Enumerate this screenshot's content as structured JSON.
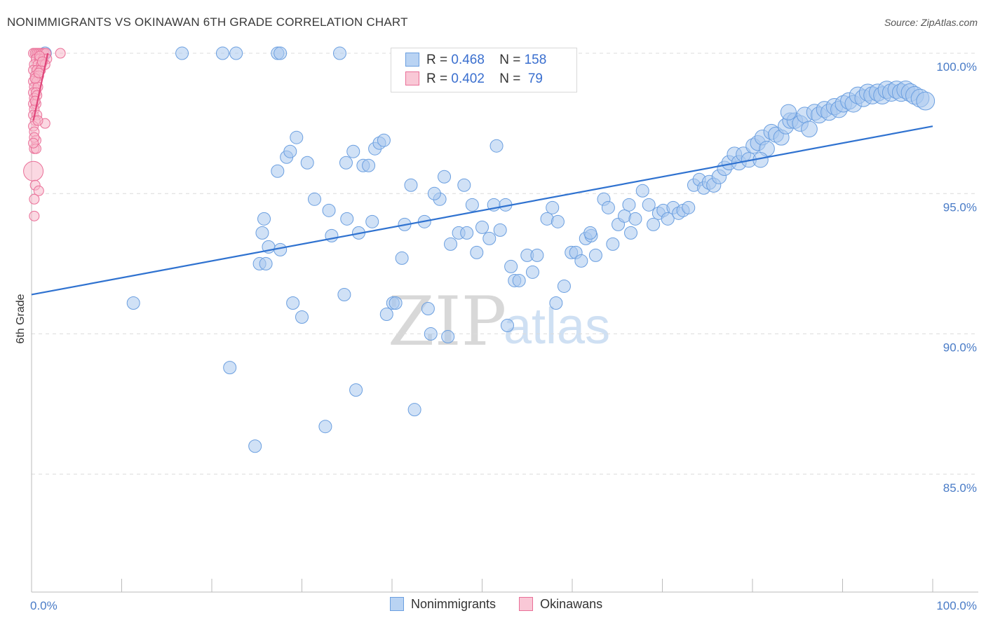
{
  "title": "NONIMMIGRANTS VS OKINAWAN 6TH GRADE CORRELATION CHART",
  "source": "Source: ZipAtlas.com",
  "legend": {
    "rows": [
      {
        "r_label": "R = ",
        "r_value": "0.468",
        "n_label": "N = ",
        "n_value": "158"
      },
      {
        "r_label": "R = ",
        "r_value": "0.402",
        "n_label": "N = ",
        "n_value": " 79"
      }
    ]
  },
  "bottom_legend": [
    "Nonimmigrants",
    "Okinawans"
  ],
  "watermark": {
    "zip": "ZIP",
    "atlas": "atlas"
  },
  "colors": {
    "blue_fill": "#a9c8ef",
    "blue_stroke": "#6b9fe0",
    "blue_line": "#2f72d0",
    "pink_fill": "#f7b8cb",
    "pink_stroke": "#ea6f98",
    "pink_line": "#e0457a",
    "grid": "#dcdcdc",
    "axis_text": "#4a7cc7"
  },
  "chart_data": {
    "type": "scatter",
    "title": "NONIMMIGRANTS VS OKINAWAN 6TH GRADE CORRELATION CHART",
    "xlabel": "",
    "ylabel": "6th Grade",
    "xlim": [
      0,
      100
    ],
    "ylim": [
      80.8,
      100.9
    ],
    "x_tick_labels": [
      "0.0%",
      "100.0%"
    ],
    "y_ticks": [
      85,
      90,
      95,
      100
    ],
    "y_tick_labels": [
      "85.0%",
      "90.0%",
      "95.0%",
      "100.0%"
    ],
    "legend_position": "top-center",
    "series": [
      {
        "name": "Nonimmigrants",
        "r": 0.468,
        "n": 158,
        "trend": {
          "x": [
            0,
            100
          ],
          "y": [
            91.4,
            97.4
          ]
        },
        "points": [
          [
            1.5,
            100
          ],
          [
            16.7,
            100
          ],
          [
            21.2,
            100
          ],
          [
            22.7,
            100
          ],
          [
            27.3,
            100
          ],
          [
            27.6,
            100
          ],
          [
            34.2,
            100
          ],
          [
            11.3,
            91.1
          ],
          [
            22.0,
            88.8
          ],
          [
            24.8,
            86.0
          ],
          [
            25.6,
            93.6
          ],
          [
            26.3,
            93.1
          ],
          [
            25.3,
            92.5
          ],
          [
            25.8,
            94.1
          ],
          [
            26.0,
            92.5
          ],
          [
            27.3,
            95.8
          ],
          [
            27.6,
            93.0
          ],
          [
            28.3,
            96.3
          ],
          [
            28.7,
            96.5
          ],
          [
            29.0,
            91.1
          ],
          [
            29.4,
            97.0
          ],
          [
            30.0,
            90.6
          ],
          [
            30.6,
            96.1
          ],
          [
            31.4,
            94.8
          ],
          [
            32.6,
            86.7
          ],
          [
            33.0,
            94.4
          ],
          [
            33.3,
            93.5
          ],
          [
            34.7,
            91.4
          ],
          [
            34.9,
            96.1
          ],
          [
            35.0,
            94.1
          ],
          [
            35.7,
            96.5
          ],
          [
            36.0,
            88.0
          ],
          [
            36.3,
            93.6
          ],
          [
            36.8,
            96.0
          ],
          [
            37.4,
            96.0
          ],
          [
            38.1,
            96.6
          ],
          [
            38.6,
            96.8
          ],
          [
            39.1,
            96.9
          ],
          [
            39.4,
            90.7
          ],
          [
            40.1,
            91.1
          ],
          [
            40.4,
            91.1
          ],
          [
            41.1,
            92.7
          ],
          [
            41.4,
            93.9
          ],
          [
            42.1,
            95.3
          ],
          [
            42.5,
            87.3
          ],
          [
            43.6,
            94.0
          ],
          [
            44.0,
            90.9
          ],
          [
            44.3,
            90.0
          ],
          [
            45.3,
            94.8
          ],
          [
            45.8,
            95.6
          ],
          [
            46.2,
            89.9
          ],
          [
            46.5,
            93.2
          ],
          [
            47.4,
            93.6
          ],
          [
            48.0,
            95.3
          ],
          [
            48.3,
            93.6
          ],
          [
            48.9,
            94.6
          ],
          [
            49.4,
            92.9
          ],
          [
            50.0,
            93.8
          ],
          [
            50.8,
            93.4
          ],
          [
            51.3,
            94.6
          ],
          [
            51.6,
            96.7
          ],
          [
            52.0,
            93.7
          ],
          [
            52.8,
            90.3
          ],
          [
            53.2,
            92.4
          ],
          [
            53.6,
            91.9
          ],
          [
            54.1,
            91.9
          ],
          [
            55.0,
            92.8
          ],
          [
            55.6,
            92.2
          ],
          [
            56.1,
            92.8
          ],
          [
            57.2,
            94.1
          ],
          [
            57.8,
            94.5
          ],
          [
            58.2,
            91.1
          ],
          [
            58.4,
            94.0
          ],
          [
            59.1,
            91.7
          ],
          [
            59.9,
            92.9
          ],
          [
            60.4,
            92.9
          ],
          [
            61.0,
            92.6
          ],
          [
            61.5,
            93.4
          ],
          [
            62.1,
            93.5
          ],
          [
            62.6,
            92.8
          ],
          [
            63.5,
            94.8
          ],
          [
            64.0,
            94.5
          ],
          [
            64.5,
            93.2
          ],
          [
            65.1,
            93.9
          ],
          [
            65.8,
            94.2
          ],
          [
            66.3,
            94.6
          ],
          [
            67.0,
            94.1
          ],
          [
            67.8,
            95.1
          ],
          [
            68.5,
            94.6
          ],
          [
            69.0,
            93.9
          ],
          [
            69.6,
            94.3
          ],
          [
            70.1,
            94.4
          ],
          [
            70.6,
            94.1
          ],
          [
            71.2,
            94.5
          ],
          [
            71.8,
            94.3
          ],
          [
            72.3,
            94.4
          ],
          [
            72.9,
            94.5
          ],
          [
            73.5,
            95.3
          ],
          [
            74.1,
            95.5
          ],
          [
            74.6,
            95.2
          ],
          [
            75.2,
            95.4
          ],
          [
            75.7,
            95.3
          ],
          [
            76.3,
            95.6
          ],
          [
            76.9,
            95.9
          ],
          [
            77.4,
            96.1
          ],
          [
            78.0,
            96.4
          ],
          [
            78.5,
            96.1
          ],
          [
            79.0,
            96.4
          ],
          [
            79.6,
            96.2
          ],
          [
            80.1,
            96.7
          ],
          [
            80.6,
            96.8
          ],
          [
            81.1,
            97.0
          ],
          [
            81.6,
            96.6
          ],
          [
            82.1,
            97.2
          ],
          [
            82.6,
            97.1
          ],
          [
            83.2,
            97.0
          ],
          [
            83.7,
            97.4
          ],
          [
            84.2,
            97.6
          ],
          [
            84.7,
            97.6
          ],
          [
            85.3,
            97.5
          ],
          [
            85.8,
            97.8
          ],
          [
            86.3,
            97.3
          ],
          [
            86.9,
            97.9
          ],
          [
            87.4,
            97.8
          ],
          [
            88.0,
            98.0
          ],
          [
            88.5,
            97.9
          ],
          [
            89.1,
            98.1
          ],
          [
            89.6,
            98.0
          ],
          [
            90.1,
            98.2
          ],
          [
            90.7,
            98.3
          ],
          [
            91.2,
            98.2
          ],
          [
            91.7,
            98.5
          ],
          [
            92.3,
            98.4
          ],
          [
            92.8,
            98.6
          ],
          [
            93.3,
            98.5
          ],
          [
            93.9,
            98.6
          ],
          [
            94.4,
            98.5
          ],
          [
            94.9,
            98.7
          ],
          [
            95.4,
            98.6
          ],
          [
            96.0,
            98.7
          ],
          [
            96.5,
            98.6
          ],
          [
            97.0,
            98.7
          ],
          [
            97.5,
            98.6
          ],
          [
            98.0,
            98.5
          ],
          [
            98.6,
            98.4
          ],
          [
            99.2,
            98.3
          ],
          [
            84.0,
            97.9
          ],
          [
            80.9,
            96.2
          ],
          [
            62.0,
            93.6
          ],
          [
            66.5,
            93.6
          ],
          [
            37.8,
            94.0
          ],
          [
            44.7,
            95.0
          ],
          [
            52.6,
            94.6
          ]
        ]
      },
      {
        "name": "Okinawans",
        "r": 0.402,
        "n": 79,
        "trend": {
          "x": [
            0.2,
            1.8
          ],
          "y": [
            97.6,
            100.0
          ]
        },
        "points": [
          [
            0.2,
            100
          ],
          [
            0.4,
            100
          ],
          [
            0.6,
            100
          ],
          [
            0.8,
            100
          ],
          [
            1.0,
            100
          ],
          [
            1.2,
            100
          ],
          [
            1.4,
            100
          ],
          [
            1.6,
            100
          ],
          [
            0.5,
            99.8
          ],
          [
            0.9,
            99.8
          ],
          [
            1.3,
            99.8
          ],
          [
            1.7,
            99.8
          ],
          [
            0.3,
            99.6
          ],
          [
            0.7,
            99.6
          ],
          [
            1.1,
            99.6
          ],
          [
            1.5,
            99.6
          ],
          [
            0.2,
            99.4
          ],
          [
            0.6,
            99.4
          ],
          [
            1.0,
            99.4
          ],
          [
            0.4,
            99.2
          ],
          [
            0.8,
            99.2
          ],
          [
            0.2,
            99.0
          ],
          [
            0.6,
            99.0
          ],
          [
            0.3,
            98.8
          ],
          [
            0.7,
            98.8
          ],
          [
            0.2,
            98.6
          ],
          [
            0.5,
            98.6
          ],
          [
            0.3,
            98.4
          ],
          [
            0.2,
            98.2
          ],
          [
            0.5,
            98.2
          ],
          [
            0.3,
            98.0
          ],
          [
            0.2,
            97.8
          ],
          [
            0.6,
            97.8
          ],
          [
            0.4,
            97.6
          ],
          [
            0.2,
            97.4
          ],
          [
            1.5,
            97.5
          ],
          [
            0.3,
            97.2
          ],
          [
            0.5,
            96.9
          ],
          [
            0.3,
            96.6
          ],
          [
            0.5,
            96.6
          ],
          [
            0.2,
            95.8
          ],
          [
            0.4,
            95.3
          ],
          [
            0.8,
            95.1
          ],
          [
            0.3,
            94.8
          ],
          [
            0.3,
            94.2
          ],
          [
            3.2,
            100
          ],
          [
            0.9,
            99.9
          ],
          [
            1.2,
            99.7
          ],
          [
            0.6,
            98.5
          ],
          [
            0.4,
            98.3
          ],
          [
            0.7,
            97.6
          ],
          [
            0.3,
            97.0
          ],
          [
            0.2,
            96.8
          ],
          [
            0.4,
            99.1
          ],
          [
            0.8,
            99.3
          ]
        ]
      }
    ]
  }
}
